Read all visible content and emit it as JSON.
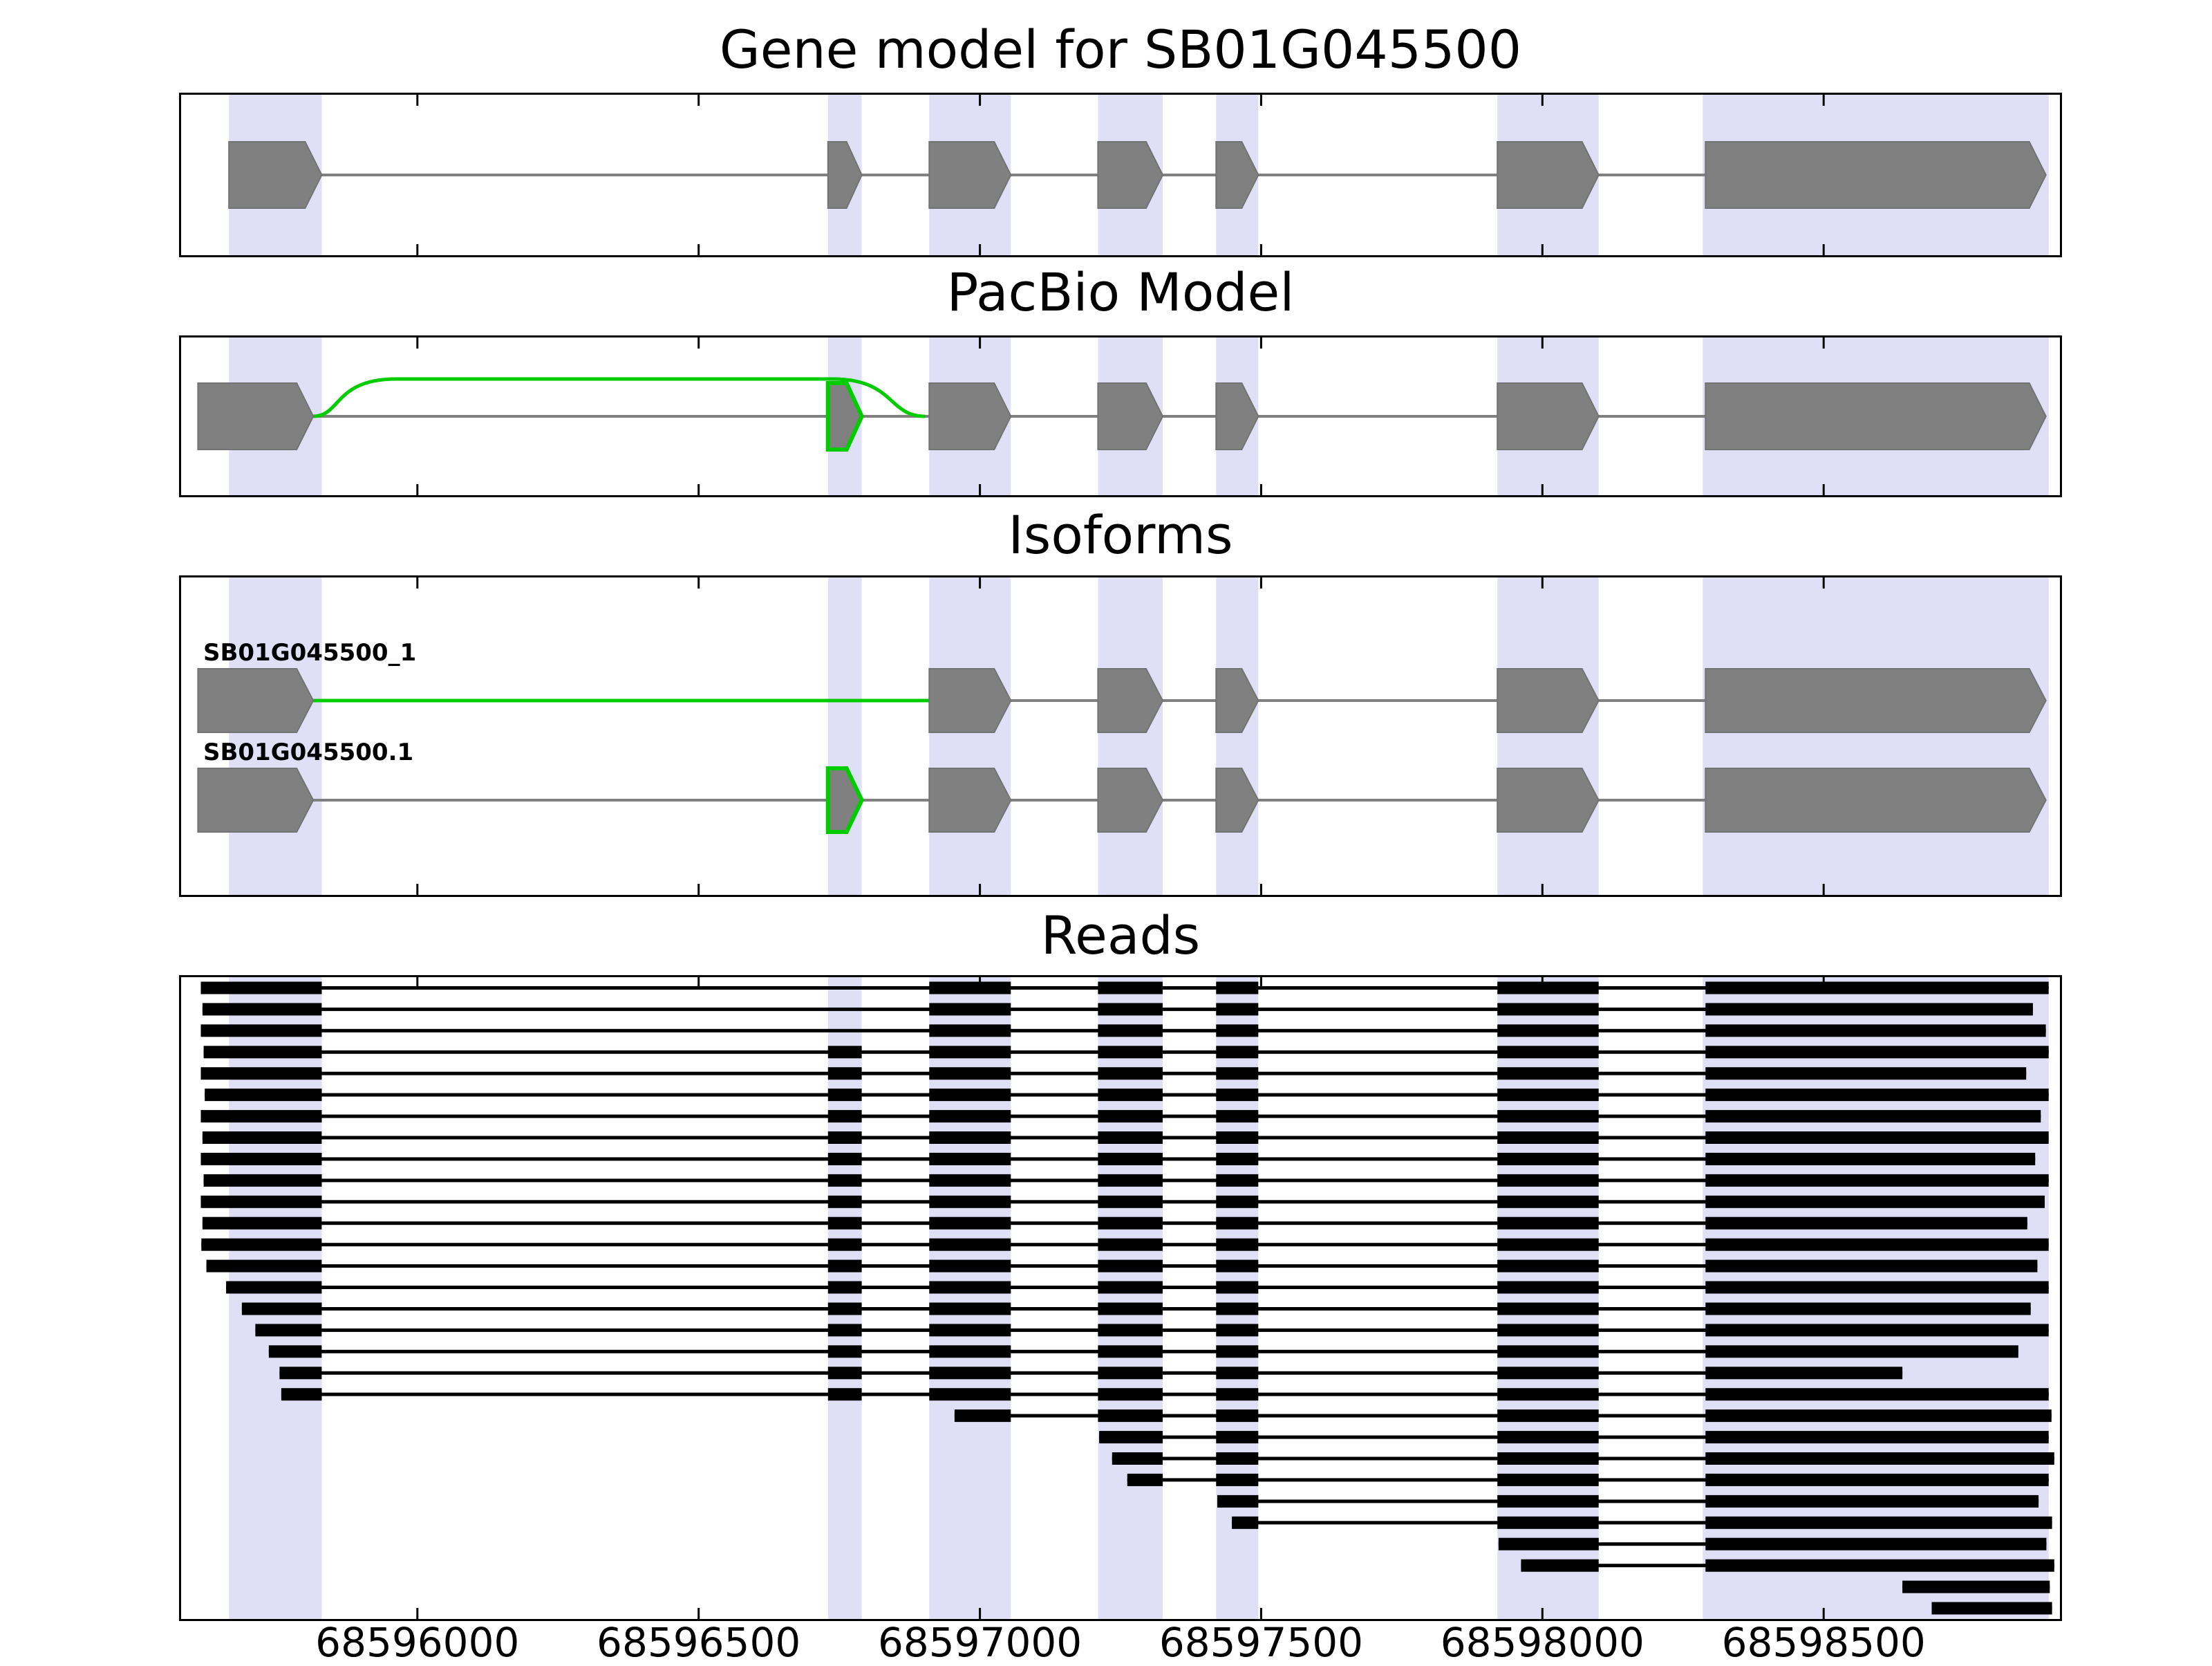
{
  "figure": {
    "titles": {
      "gene_model": "Gene model for SB01G045500",
      "pacbio": "PacBio Model",
      "isoforms": "Isoforms",
      "reads": "Reads"
    }
  },
  "chart_data": {
    "type": "gene-model-tracks",
    "x_axis": {
      "min": 68595580,
      "max": 68598920,
      "ticks": [
        68596000,
        68596500,
        68597000,
        68597500,
        68598000,
        68598500
      ],
      "tick_labels": [
        "68596000",
        "68596500",
        "68597000",
        "68597500",
        "68598000",
        "68598500"
      ]
    },
    "colors": {
      "exon_fill": "#808080",
      "exon_edge": "#737373",
      "novel_green": "#00cc00",
      "highlight_band": "#dfdff6",
      "read_black": "#000000",
      "intron_line": "#808080",
      "axis_line": "#000000",
      "background": "#ffffff"
    },
    "highlight_regions": [
      [
        68595665,
        68595830
      ],
      [
        68596730,
        68596790
      ],
      [
        68596910,
        68597055
      ],
      [
        68597210,
        68597325
      ],
      [
        68597420,
        68597495
      ],
      [
        68597920,
        68598100
      ],
      [
        68598285,
        68598900
      ]
    ],
    "gene_model_track": {
      "strand": "+",
      "exons": [
        [
          68595665,
          68595830
        ],
        [
          68596730,
          68596790
        ],
        [
          68596910,
          68597055
        ],
        [
          68597210,
          68597325
        ],
        [
          68597420,
          68597495
        ],
        [
          68597920,
          68598100
        ],
        [
          68598290,
          68598895
        ]
      ]
    },
    "pacbio_track": {
      "strand": "+",
      "exons": [
        [
          68595610,
          68595815
        ],
        [
          68596910,
          68597055
        ],
        [
          68597210,
          68597325
        ],
        [
          68597420,
          68597495
        ],
        [
          68597920,
          68598100
        ],
        [
          68598290,
          68598895
        ]
      ],
      "novel_exon": [
        68596730,
        68596790
      ],
      "novel_junction": [
        68595815,
        68596910
      ]
    },
    "isoform_tracks": [
      {
        "name": "SB01G045500_1",
        "exons": [
          [
            68595610,
            68595815
          ],
          [
            68596910,
            68597055
          ],
          [
            68597210,
            68597325
          ],
          [
            68597420,
            68597495
          ],
          [
            68597920,
            68598100
          ],
          [
            68598290,
            68598895
          ]
        ],
        "novel_junction": [
          68595815,
          68596910
        ]
      },
      {
        "name": "SB01G045500.1",
        "exons": [
          [
            68595610,
            68595815
          ],
          [
            68596910,
            68597055
          ],
          [
            68597210,
            68597325
          ],
          [
            68597420,
            68597495
          ],
          [
            68597920,
            68598100
          ],
          [
            68598290,
            68598895
          ]
        ],
        "novel_exon": [
          68596730,
          68596790
        ]
      }
    ],
    "reads": [
      [
        [
          68595615,
          68595830
        ],
        [
          68596910,
          68597055
        ],
        [
          68597210,
          68597325
        ],
        [
          68597420,
          68597495
        ],
        [
          68597920,
          68598100
        ],
        [
          68598290,
          68598900
        ]
      ],
      [
        [
          68595618,
          68595830
        ],
        [
          68596910,
          68597055
        ],
        [
          68597210,
          68597325
        ],
        [
          68597420,
          68597495
        ],
        [
          68597920,
          68598100
        ],
        [
          68598290,
          68598872
        ]
      ],
      [
        [
          68595615,
          68595830
        ],
        [
          68596910,
          68597055
        ],
        [
          68597210,
          68597325
        ],
        [
          68597420,
          68597495
        ],
        [
          68597920,
          68598100
        ],
        [
          68598290,
          68598895
        ]
      ],
      [
        [
          68595620,
          68595830
        ],
        [
          68596730,
          68596790
        ],
        [
          68596910,
          68597055
        ],
        [
          68597210,
          68597325
        ],
        [
          68597420,
          68597495
        ],
        [
          68597920,
          68598100
        ],
        [
          68598290,
          68598900
        ]
      ],
      [
        [
          68595615,
          68595830
        ],
        [
          68596730,
          68596790
        ],
        [
          68596910,
          68597055
        ],
        [
          68597210,
          68597325
        ],
        [
          68597420,
          68597495
        ],
        [
          68597920,
          68598100
        ],
        [
          68598290,
          68598860
        ]
      ],
      [
        [
          68595622,
          68595830
        ],
        [
          68596730,
          68596790
        ],
        [
          68596910,
          68597055
        ],
        [
          68597210,
          68597325
        ],
        [
          68597420,
          68597495
        ],
        [
          68597920,
          68598100
        ],
        [
          68598290,
          68598900
        ]
      ],
      [
        [
          68595615,
          68595830
        ],
        [
          68596730,
          68596790
        ],
        [
          68596910,
          68597055
        ],
        [
          68597210,
          68597325
        ],
        [
          68597420,
          68597495
        ],
        [
          68597920,
          68598100
        ],
        [
          68598290,
          68598886
        ]
      ],
      [
        [
          68595618,
          68595830
        ],
        [
          68596730,
          68596790
        ],
        [
          68596910,
          68597055
        ],
        [
          68597210,
          68597325
        ],
        [
          68597420,
          68597495
        ],
        [
          68597920,
          68598100
        ],
        [
          68598290,
          68598900
        ]
      ],
      [
        [
          68595615,
          68595830
        ],
        [
          68596730,
          68596790
        ],
        [
          68596910,
          68597055
        ],
        [
          68597210,
          68597325
        ],
        [
          68597420,
          68597495
        ],
        [
          68597920,
          68598100
        ],
        [
          68598290,
          68598876
        ]
      ],
      [
        [
          68595620,
          68595830
        ],
        [
          68596730,
          68596790
        ],
        [
          68596910,
          68597055
        ],
        [
          68597210,
          68597325
        ],
        [
          68597420,
          68597495
        ],
        [
          68597920,
          68598100
        ],
        [
          68598290,
          68598900
        ]
      ],
      [
        [
          68595615,
          68595830
        ],
        [
          68596730,
          68596790
        ],
        [
          68596910,
          68597055
        ],
        [
          68597210,
          68597325
        ],
        [
          68597420,
          68597495
        ],
        [
          68597920,
          68598100
        ],
        [
          68598290,
          68598893
        ]
      ],
      [
        [
          68595618,
          68595830
        ],
        [
          68596730,
          68596790
        ],
        [
          68596910,
          68597055
        ],
        [
          68597210,
          68597325
        ],
        [
          68597420,
          68597495
        ],
        [
          68597920,
          68598100
        ],
        [
          68598290,
          68598862
        ]
      ],
      [
        [
          68595616,
          68595830
        ],
        [
          68596730,
          68596790
        ],
        [
          68596910,
          68597055
        ],
        [
          68597210,
          68597325
        ],
        [
          68597420,
          68597495
        ],
        [
          68597920,
          68598100
        ],
        [
          68598290,
          68598900
        ]
      ],
      [
        [
          68595625,
          68595830
        ],
        [
          68596730,
          68596790
        ],
        [
          68596910,
          68597055
        ],
        [
          68597210,
          68597325
        ],
        [
          68597420,
          68597495
        ],
        [
          68597920,
          68598100
        ],
        [
          68598290,
          68598880
        ]
      ],
      [
        [
          68595660,
          68595830
        ],
        [
          68596730,
          68596790
        ],
        [
          68596910,
          68597055
        ],
        [
          68597210,
          68597325
        ],
        [
          68597420,
          68597495
        ],
        [
          68597920,
          68598100
        ],
        [
          68598290,
          68598900
        ]
      ],
      [
        [
          68595688,
          68595830
        ],
        [
          68596730,
          68596790
        ],
        [
          68596910,
          68597055
        ],
        [
          68597210,
          68597325
        ],
        [
          68597420,
          68597495
        ],
        [
          68597920,
          68598100
        ],
        [
          68598290,
          68598868
        ]
      ],
      [
        [
          68595712,
          68595830
        ],
        [
          68596730,
          68596790
        ],
        [
          68596910,
          68597055
        ],
        [
          68597210,
          68597325
        ],
        [
          68597420,
          68597495
        ],
        [
          68597920,
          68598100
        ],
        [
          68598290,
          68598900
        ]
      ],
      [
        [
          68595736,
          68595830
        ],
        [
          68596730,
          68596790
        ],
        [
          68596910,
          68597055
        ],
        [
          68597210,
          68597325
        ],
        [
          68597420,
          68597495
        ],
        [
          68597920,
          68598100
        ],
        [
          68598290,
          68598846
        ]
      ],
      [
        [
          68595755,
          68595830
        ],
        [
          68596730,
          68596790
        ],
        [
          68596910,
          68597055
        ],
        [
          68597210,
          68597325
        ],
        [
          68597420,
          68597495
        ],
        [
          68597920,
          68598100
        ],
        [
          68598290,
          68598640
        ]
      ],
      [
        [
          68595758,
          68595830
        ],
        [
          68596730,
          68596790
        ],
        [
          68596910,
          68597055
        ],
        [
          68597210,
          68597325
        ],
        [
          68597420,
          68597495
        ],
        [
          68597920,
          68598100
        ],
        [
          68598290,
          68598900
        ]
      ],
      [
        [
          68596955,
          68597055
        ],
        [
          68597210,
          68597325
        ],
        [
          68597420,
          68597495
        ],
        [
          68597920,
          68598100
        ],
        [
          68598290,
          68598905
        ]
      ],
      [
        [
          68597212,
          68597325
        ],
        [
          68597420,
          68597495
        ],
        [
          68597920,
          68598100
        ],
        [
          68598290,
          68598900
        ]
      ],
      [
        [
          68597235,
          68597325
        ],
        [
          68597420,
          68597495
        ],
        [
          68597920,
          68598100
        ],
        [
          68598290,
          68598910
        ]
      ],
      [
        [
          68597262,
          68597325
        ],
        [
          68597420,
          68597495
        ],
        [
          68597920,
          68598100
        ],
        [
          68598290,
          68598900
        ]
      ],
      [
        [
          68597422,
          68597495
        ],
        [
          68597920,
          68598100
        ],
        [
          68598290,
          68598882
        ]
      ],
      [
        [
          68597448,
          68597495
        ],
        [
          68597920,
          68598100
        ],
        [
          68598290,
          68598906
        ]
      ],
      [
        [
          68597922,
          68598100
        ],
        [
          68598290,
          68598896
        ]
      ],
      [
        [
          68597962,
          68598100
        ],
        [
          68598290,
          68598910
        ]
      ],
      [
        [
          68598640,
          68598902
        ]
      ],
      [
        [
          68598692,
          68598906
        ]
      ]
    ]
  }
}
